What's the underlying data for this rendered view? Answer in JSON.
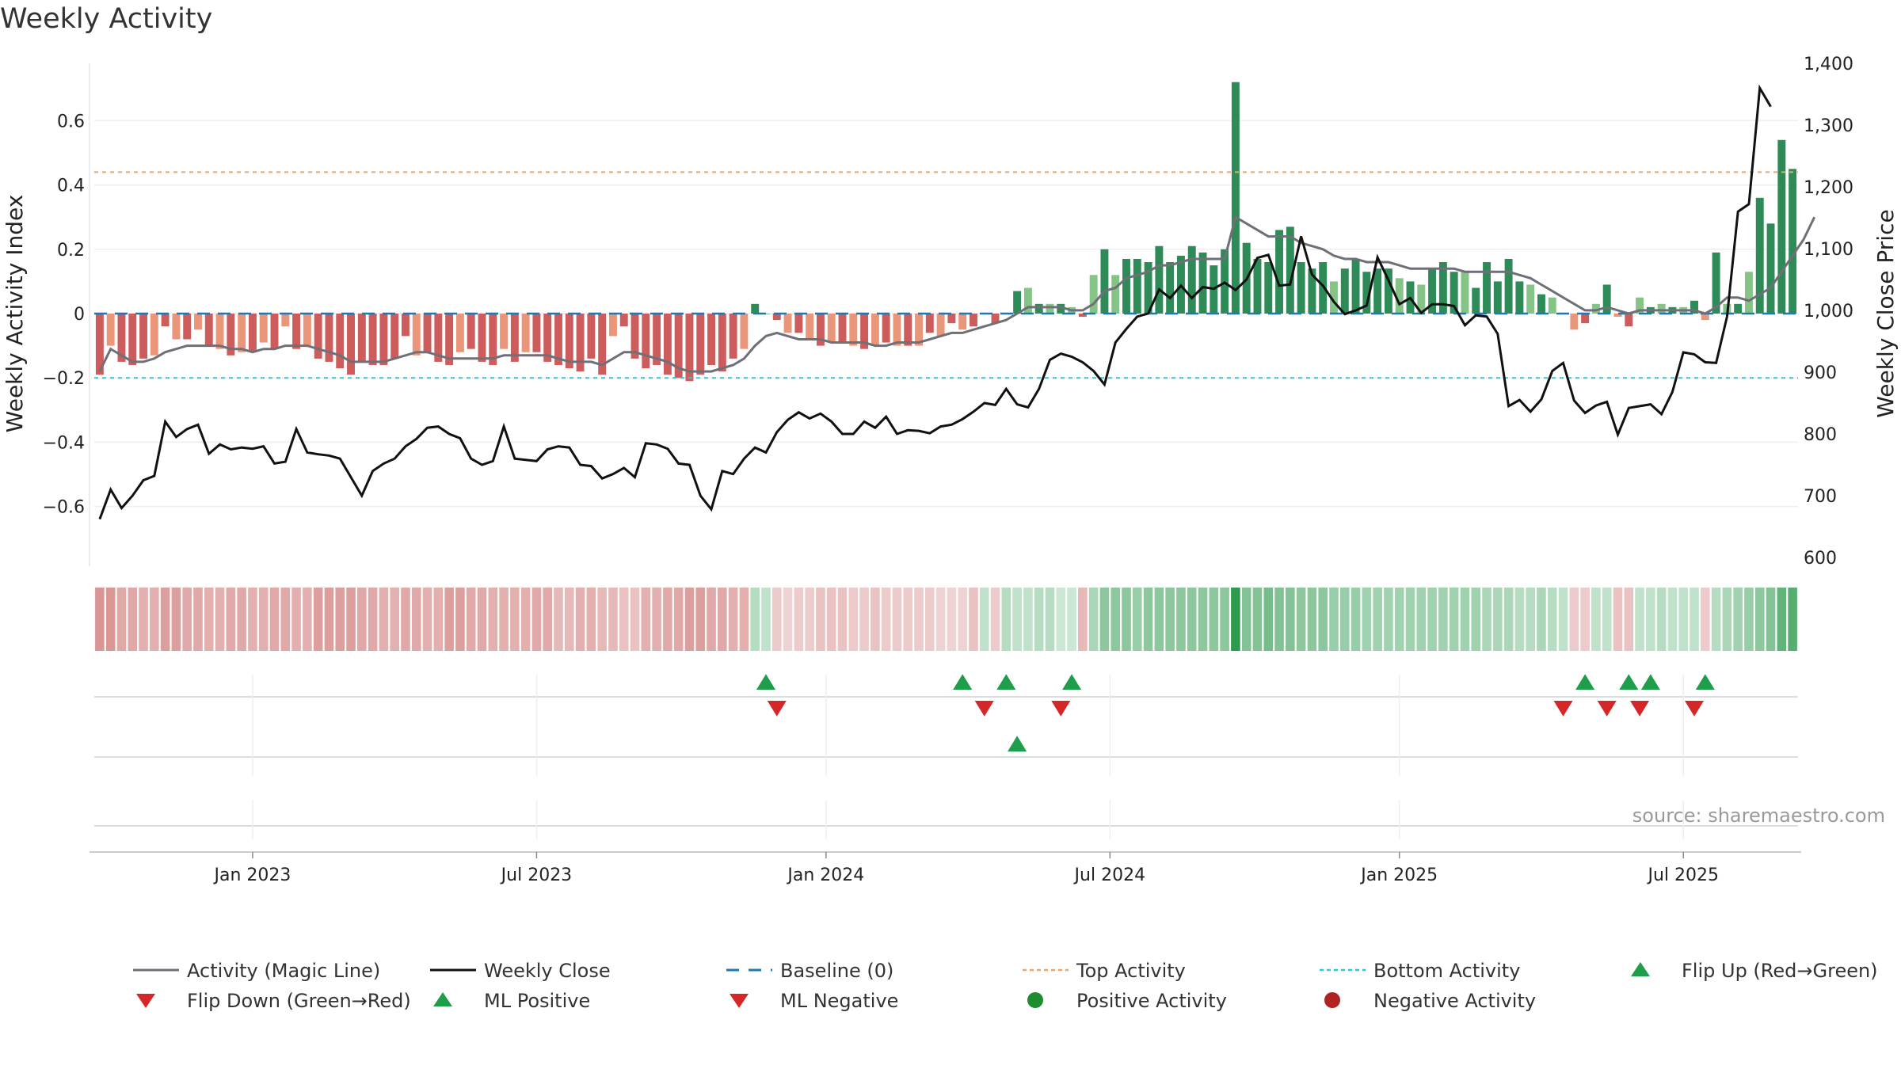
{
  "title": "Weekly Activity",
  "source": "source: sharemaestro.com",
  "colors": {
    "magic_line": "#6f6f78",
    "close": "#111111",
    "baseline": "#1f77b4",
    "top": "#f4a460",
    "bottom": "#22ccdd",
    "pos_strong": "#2e8b57",
    "pos_light": "#86c386",
    "neg_strong": "#cd5c5c",
    "neg_light": "#e9967a",
    "up": "#1e9e4a",
    "down": "#d62728",
    "pos_dot": "#1e8c2e",
    "neg_dot": "#b22222"
  },
  "chart_data": {
    "type": "bar+line",
    "title": "Weekly Activity",
    "ylabel_left": "Weekly Activity Index",
    "ylabel_right": "Weekly Close Price",
    "ylim_left": [
      -0.78,
      0.78
    ],
    "ylim_right": [
      580,
      1400
    ],
    "yticks_left": [
      {
        "v": 0.6,
        "label": "0.6"
      },
      {
        "v": 0.4,
        "label": "0.4"
      },
      {
        "v": 0.2,
        "label": "0.2"
      },
      {
        "v": 0,
        "label": "0"
      },
      {
        "v": -0.2,
        "label": "−0.2"
      },
      {
        "v": -0.4,
        "label": "−0.4"
      },
      {
        "v": -0.6,
        "label": "−0.6"
      }
    ],
    "yticks_right": [
      {
        "v": 1400,
        "label": "1,400"
      },
      {
        "v": 1300,
        "label": "1,300"
      },
      {
        "v": 1200,
        "label": "1,200"
      },
      {
        "v": 1100,
        "label": "1,100"
      },
      {
        "v": 1000,
        "label": "1,000"
      },
      {
        "v": 900,
        "label": "900"
      },
      {
        "v": 800,
        "label": "800"
      },
      {
        "v": 700,
        "label": "700"
      },
      {
        "v": 600,
        "label": "600"
      }
    ],
    "xticks": [
      {
        "week": 14.5,
        "label": "Jan 2023"
      },
      {
        "week": 40.5,
        "label": "Jul 2023"
      },
      {
        "week": 67,
        "label": "Jan 2024"
      },
      {
        "week": 93,
        "label": "Jul 2024"
      },
      {
        "week": 119.5,
        "label": "Jan 2025"
      },
      {
        "week": 145.5,
        "label": "Jul 2025"
      }
    ],
    "top_activity": 0.44,
    "bottom_activity": -0.2,
    "baseline": 0,
    "activity": [
      -0.19,
      -0.1,
      -0.15,
      -0.16,
      -0.14,
      -0.13,
      -0.04,
      -0.08,
      -0.08,
      -0.05,
      -0.1,
      -0.11,
      -0.13,
      -0.12,
      -0.12,
      -0.09,
      -0.11,
      -0.04,
      -0.11,
      -0.1,
      -0.14,
      -0.15,
      -0.17,
      -0.19,
      -0.15,
      -0.16,
      -0.16,
      -0.14,
      -0.07,
      -0.13,
      -0.12,
      -0.15,
      -0.16,
      -0.12,
      -0.11,
      -0.15,
      -0.16,
      -0.11,
      -0.15,
      -0.12,
      -0.12,
      -0.15,
      -0.16,
      -0.17,
      -0.18,
      -0.14,
      -0.19,
      -0.07,
      -0.04,
      -0.14,
      -0.17,
      -0.16,
      -0.19,
      -0.2,
      -0.21,
      -0.19,
      -0.16,
      -0.18,
      -0.14,
      -0.11,
      0.03,
      0,
      -0.02,
      -0.06,
      -0.06,
      -0.08,
      -0.1,
      -0.09,
      -0.09,
      -0.1,
      -0.11,
      -0.1,
      -0.09,
      -0.1,
      -0.1,
      -0.1,
      -0.06,
      -0.07,
      -0.03,
      -0.05,
      -0.04,
      0,
      -0.03,
      0,
      0.07,
      0.08,
      0.03,
      0.03,
      0.03,
      0.02,
      -0.01,
      0.12,
      0.2,
      0.12,
      0.17,
      0.17,
      0.16,
      0.21,
      0.16,
      0.18,
      0.21,
      0.19,
      0.15,
      0.2,
      0.72,
      0.22,
      0.17,
      0.16,
      0.26,
      0.27,
      0.16,
      0.14,
      0.16,
      0.1,
      0.14,
      0.17,
      0.13,
      0.14,
      0.14,
      0.11,
      0.1,
      0.09,
      0.14,
      0.16,
      0.13,
      0.13,
      0.08,
      0.16,
      0.1,
      0.17,
      0.1,
      0.09,
      0.06,
      0.05,
      0,
      -0.05,
      -0.03,
      0.03,
      0.09,
      -0.01,
      -0.04,
      0.05,
      0.02,
      0.03,
      0.02,
      0.02,
      0.04,
      -0.02,
      0.19,
      0.03,
      0.03,
      0.13,
      0.36,
      0.28,
      0.54,
      0.45
    ],
    "magic_line": [
      -0.18,
      -0.11,
      -0.13,
      -0.15,
      -0.15,
      -0.14,
      -0.12,
      -0.11,
      -0.1,
      -0.1,
      -0.1,
      -0.1,
      -0.11,
      -0.11,
      -0.12,
      -0.11,
      -0.11,
      -0.1,
      -0.1,
      -0.1,
      -0.11,
      -0.12,
      -0.13,
      -0.15,
      -0.15,
      -0.15,
      -0.15,
      -0.14,
      -0.13,
      -0.12,
      -0.12,
      -0.13,
      -0.14,
      -0.14,
      -0.14,
      -0.14,
      -0.14,
      -0.13,
      -0.13,
      -0.13,
      -0.13,
      -0.13,
      -0.14,
      -0.15,
      -0.15,
      -0.15,
      -0.16,
      -0.14,
      -0.12,
      -0.12,
      -0.13,
      -0.14,
      -0.15,
      -0.17,
      -0.18,
      -0.18,
      -0.18,
      -0.17,
      -0.16,
      -0.14,
      -0.1,
      -0.07,
      -0.06,
      -0.07,
      -0.08,
      -0.08,
      -0.08,
      -0.09,
      -0.09,
      -0.09,
      -0.09,
      -0.1,
      -0.1,
      -0.09,
      -0.09,
      -0.09,
      -0.08,
      -0.07,
      -0.06,
      -0.06,
      -0.05,
      -0.04,
      -0.03,
      -0.02,
      0,
      0.02,
      0.02,
      0.02,
      0.02,
      0.01,
      0.01,
      0.03,
      0.07,
      0.08,
      0.11,
      0.12,
      0.13,
      0.15,
      0.15,
      0.16,
      0.17,
      0.17,
      0.17,
      0.17,
      0.3,
      0.28,
      0.26,
      0.24,
      0.24,
      0.24,
      0.22,
      0.21,
      0.2,
      0.18,
      0.17,
      0.17,
      0.16,
      0.16,
      0.16,
      0.15,
      0.14,
      0.14,
      0.14,
      0.14,
      0.14,
      0.13,
      0.13,
      0.13,
      0.13,
      0.13,
      0.12,
      0.11,
      0.09,
      0.07,
      0.05,
      0.03,
      0.01,
      0.01,
      0.02,
      0.01,
      0,
      0.01,
      0.01,
      0.01,
      0.01,
      0.01,
      0.01,
      0,
      0.02,
      0.05,
      0.05,
      0.04,
      0.06,
      0.08,
      0.13,
      0.18,
      0.23,
      0.3
    ],
    "weekly_close": [
      662,
      710,
      680,
      700,
      725,
      732,
      820,
      795,
      808,
      815,
      768,
      783,
      775,
      778,
      776,
      780,
      752,
      755,
      808,
      770,
      767,
      765,
      760,
      730,
      700,
      740,
      752,
      760,
      780,
      792,
      810,
      812,
      800,
      793,
      760,
      750,
      756,
      812,
      760,
      758,
      756,
      775,
      780,
      778,
      750,
      748,
      728,
      735,
      745,
      730,
      785,
      783,
      776,
      752,
      750,
      700,
      678,
      740,
      735,
      760,
      778,
      770,
      803,
      823,
      835,
      825,
      833,
      820,
      800,
      800,
      820,
      810,
      828,
      800,
      806,
      805,
      801,
      812,
      815,
      824,
      836,
      850,
      847,
      873,
      848,
      843,
      873,
      920,
      930,
      925,
      916,
      902,
      880,
      948,
      970,
      990,
      995,
      1034,
      1020,
      1040,
      1020,
      1038,
      1035,
      1045,
      1033,
      1050,
      1085,
      1090,
      1040,
      1042,
      1120,
      1058,
      1040,
      1014,
      994,
      1000,
      1008,
      1086,
      1049,
      1010,
      1020,
      996,
      1010,
      1010,
      1007,
      976,
      992,
      990,
      962,
      845,
      855,
      836,
      856,
      902,
      915,
      854,
      834,
      846,
      852,
      799,
      842,
      845,
      848,
      832,
      868,
      932,
      929,
      916,
      915,
      990,
      1160,
      1172,
      1360,
      1330
    ],
    "heat_intensity": [
      0.6,
      0.6,
      0.5,
      0.5,
      0.45,
      0.45,
      0.55,
      0.55,
      0.5,
      0.5,
      0.45,
      0.45,
      0.5,
      0.5,
      0.45,
      0.45,
      0.5,
      0.5,
      0.45,
      0.45,
      0.55,
      0.55,
      0.55,
      0.55,
      0.5,
      0.5,
      0.45,
      0.45,
      0.5,
      0.5,
      0.45,
      0.45,
      0.55,
      0.55,
      0.5,
      0.5,
      0.45,
      0.45,
      0.45,
      0.45,
      0.5,
      0.5,
      0.4,
      0.4,
      0.45,
      0.45,
      0.4,
      0.4,
      0.35,
      0.35,
      0.45,
      0.45,
      0.5,
      0.5,
      0.55,
      0.55,
      0.5,
      0.5,
      0.45,
      0.45,
      0.35,
      0.3,
      0.3,
      0.25,
      0.3,
      0.3,
      0.35,
      0.35,
      0.35,
      0.3,
      0.3,
      0.35,
      0.3,
      0.3,
      0.3,
      0.3,
      0.3,
      0.25,
      0.25,
      0.25,
      0.35,
      0.3,
      0.3,
      0.35,
      0.3,
      0.3,
      0.35,
      0.35,
      0.25,
      0.25,
      0.4,
      0.4,
      0.55,
      0.55,
      0.55,
      0.5,
      0.55,
      0.55,
      0.55,
      0.55,
      0.55,
      0.55,
      0.55,
      0.55,
      1.0,
      0.6,
      0.6,
      0.65,
      0.6,
      0.6,
      0.55,
      0.55,
      0.55,
      0.5,
      0.5,
      0.5,
      0.45,
      0.45,
      0.45,
      0.45,
      0.45,
      0.45,
      0.45,
      0.45,
      0.45,
      0.45,
      0.45,
      0.4,
      0.4,
      0.4,
      0.35,
      0.35,
      0.4,
      0.35,
      0.3,
      0.3,
      0.3,
      0.3,
      0.3,
      0.35,
      0.35,
      0.3,
      0.3,
      0.35,
      0.3,
      0.3,
      0.3,
      0.3,
      0.35,
      0.4,
      0.45,
      0.5,
      0.55,
      0.6,
      0.75,
      0.8
    ],
    "flip_up_weeks": [
      61,
      79,
      83,
      89,
      136,
      140,
      142,
      147
    ],
    "flip_down_weeks": [
      62,
      81,
      88,
      134,
      138,
      141,
      146
    ],
    "ml_positive_weeks": [
      84
    ],
    "ml_negative_weeks": [],
    "positive_activity_weeks": [],
    "negative_activity_weeks": []
  },
  "legend": [
    {
      "id": "magic",
      "label": "Activity (Magic Line)"
    },
    {
      "id": "close",
      "label": "Weekly Close"
    },
    {
      "id": "baseline",
      "label": "Baseline (0)"
    },
    {
      "id": "top",
      "label": "Top Activity"
    },
    {
      "id": "bottom",
      "label": "Bottom Activity"
    },
    {
      "id": "flipup",
      "label": "Flip Up (Red→Green)"
    },
    {
      "id": "flipdown",
      "label": "Flip Down (Green→Red)"
    },
    {
      "id": "mlpos",
      "label": "ML Positive"
    },
    {
      "id": "mlneg",
      "label": "ML Negative"
    },
    {
      "id": "posact",
      "label": "Positive Activity"
    },
    {
      "id": "negact",
      "label": "Negative Activity"
    }
  ]
}
